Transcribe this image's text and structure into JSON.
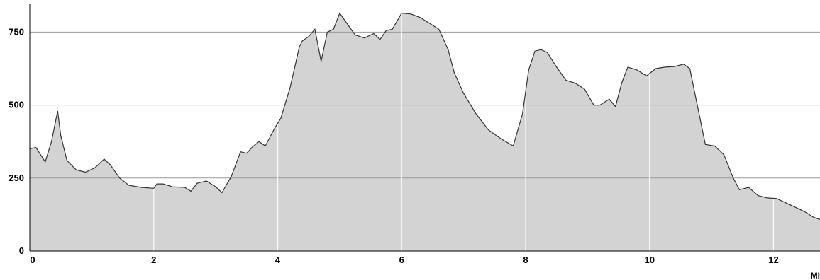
{
  "chart_data": {
    "type": "area",
    "title": "",
    "xlabel": "MI",
    "ylabel": "",
    "xlim": [
      0,
      12.75
    ],
    "ylim": [
      0,
      860
    ],
    "x_ticks": [
      0,
      2,
      4,
      6,
      8,
      10,
      12
    ],
    "y_ticks": [
      0,
      250,
      500,
      750
    ],
    "grid": {
      "horizontal": true,
      "vertical": true
    },
    "colors": {
      "fill": "#d3d3d3",
      "line": "#333333",
      "grid_h": "#999999",
      "grid_v": "#ffffff"
    },
    "series": [
      {
        "x": [
          0,
          0.1,
          0.25,
          0.35,
          0.45,
          0.5,
          0.6,
          0.75,
          0.9,
          1.05,
          1.2,
          1.3,
          1.45,
          1.6,
          1.8,
          2.0,
          2.05,
          2.15,
          2.3,
          2.5,
          2.6,
          2.7,
          2.85,
          3.0,
          3.1,
          3.25,
          3.4,
          3.5,
          3.6,
          3.7,
          3.8,
          3.95,
          4.05,
          4.2,
          4.35,
          4.4,
          4.5,
          4.6,
          4.7,
          4.8,
          4.9,
          5.0,
          5.1,
          5.25,
          5.4,
          5.55,
          5.65,
          5.75,
          5.85,
          6.0,
          6.15,
          6.3,
          6.45,
          6.6,
          6.75,
          6.85,
          7.0,
          7.2,
          7.4,
          7.6,
          7.8,
          7.95,
          8.05,
          8.15,
          8.25,
          8.35,
          8.5,
          8.65,
          8.8,
          8.95,
          9.1,
          9.2,
          9.35,
          9.45,
          9.55,
          9.65,
          9.8,
          9.95,
          10.1,
          10.25,
          10.4,
          10.55,
          10.65,
          10.75,
          10.9,
          11.05,
          11.2,
          11.35,
          11.45,
          11.6,
          11.75,
          11.9,
          12.05,
          12.2,
          12.35,
          12.5,
          12.65,
          12.75
        ],
        "values": [
          350,
          355,
          305,
          375,
          480,
          395,
          310,
          278,
          270,
          285,
          315,
          295,
          250,
          225,
          218,
          215,
          230,
          230,
          220,
          218,
          205,
          232,
          240,
          220,
          200,
          255,
          340,
          335,
          358,
          375,
          360,
          420,
          455,
          560,
          700,
          720,
          735,
          760,
          650,
          750,
          760,
          815,
          785,
          740,
          730,
          745,
          725,
          755,
          760,
          815,
          812,
          800,
          780,
          760,
          690,
          610,
          540,
          470,
          415,
          385,
          360,
          470,
          620,
          685,
          690,
          680,
          630,
          585,
          575,
          555,
          500,
          500,
          520,
          495,
          575,
          630,
          620,
          600,
          625,
          630,
          632,
          640,
          625,
          520,
          365,
          360,
          330,
          250,
          210,
          218,
          190,
          182,
          180,
          165,
          150,
          135,
          115,
          108
        ]
      }
    ]
  }
}
